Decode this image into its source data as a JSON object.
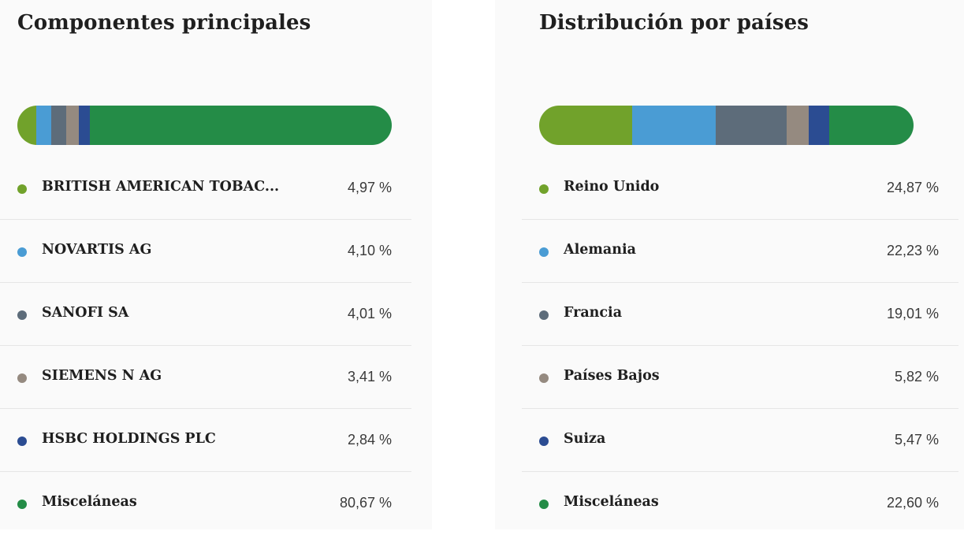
{
  "colors": {
    "green_light": "#71a22b",
    "blue_light": "#4a9cd4",
    "slate": "#5d6c7a",
    "taupe": "#958a80",
    "navy": "#2b4c92",
    "green_dark": "#248c47"
  },
  "components": {
    "title": "Componentes principales",
    "items": [
      {
        "label": "BRITISH AMERICAN TOBAC...",
        "value_text": "4,97 %",
        "value": 4.97,
        "color": "#71a22b"
      },
      {
        "label": "NOVARTIS AG",
        "value_text": "4,10 %",
        "value": 4.1,
        "color": "#4a9cd4"
      },
      {
        "label": "SANOFI SA",
        "value_text": "4,01 %",
        "value": 4.01,
        "color": "#5d6c7a"
      },
      {
        "label": "SIEMENS N AG",
        "value_text": "3,41 %",
        "value": 3.41,
        "color": "#958a80"
      },
      {
        "label": "HSBC HOLDINGS PLC",
        "value_text": "2,84 %",
        "value": 2.84,
        "color": "#2b4c92"
      },
      {
        "label": "Misceláneas",
        "value_text": "80,67 %",
        "value": 80.67,
        "color": "#248c47"
      }
    ]
  },
  "countries": {
    "title": "Distribución por países",
    "items": [
      {
        "label": "Reino Unido",
        "value_text": "24,87 %",
        "value": 24.87,
        "color": "#71a22b"
      },
      {
        "label": "Alemania",
        "value_text": "22,23 %",
        "value": 22.23,
        "color": "#4a9cd4"
      },
      {
        "label": "Francia",
        "value_text": "19,01 %",
        "value": 19.01,
        "color": "#5d6c7a"
      },
      {
        "label": "Países Bajos",
        "value_text": "5,82 %",
        "value": 5.82,
        "color": "#958a80"
      },
      {
        "label": "Suiza",
        "value_text": "5,47 %",
        "value": 5.47,
        "color": "#2b4c92"
      },
      {
        "label": "Misceláneas",
        "value_text": "22,60 %",
        "value": 22.6,
        "color": "#248c47"
      }
    ]
  }
}
